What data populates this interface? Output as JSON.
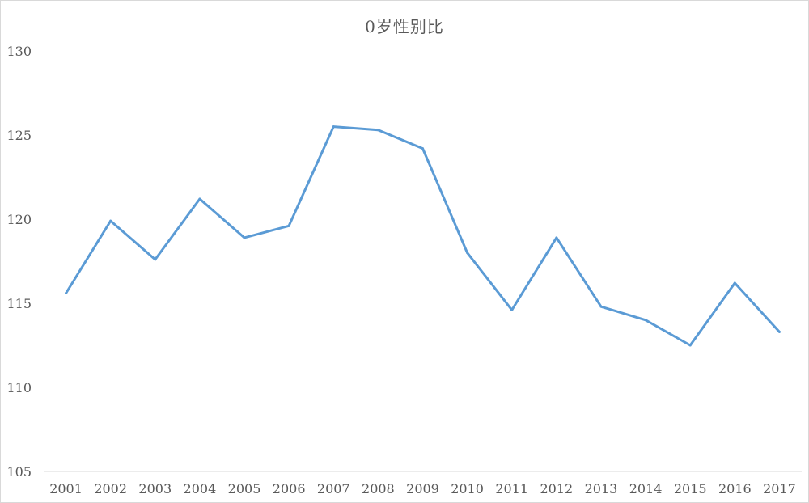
{
  "chart_data": {
    "type": "line",
    "title": "0岁性别比",
    "xlabel": "",
    "ylabel": "",
    "categories": [
      "2001",
      "2002",
      "2003",
      "2004",
      "2005",
      "2006",
      "2007",
      "2008",
      "2009",
      "2010",
      "2011",
      "2012",
      "2013",
      "2014",
      "2015",
      "2016",
      "2017"
    ],
    "series": [
      {
        "values": [
          115.6,
          119.9,
          117.6,
          121.2,
          118.9,
          119.6,
          125.5,
          125.3,
          124.2,
          118.0,
          114.6,
          118.9,
          114.8,
          114.0,
          112.5,
          116.2,
          113.3
        ],
        "color": "#5b9bd5"
      }
    ],
    "ylim": [
      105,
      130
    ],
    "yticks": [
      "105",
      "110",
      "115",
      "120",
      "125",
      "130"
    ],
    "grid": false,
    "legend": "none"
  }
}
